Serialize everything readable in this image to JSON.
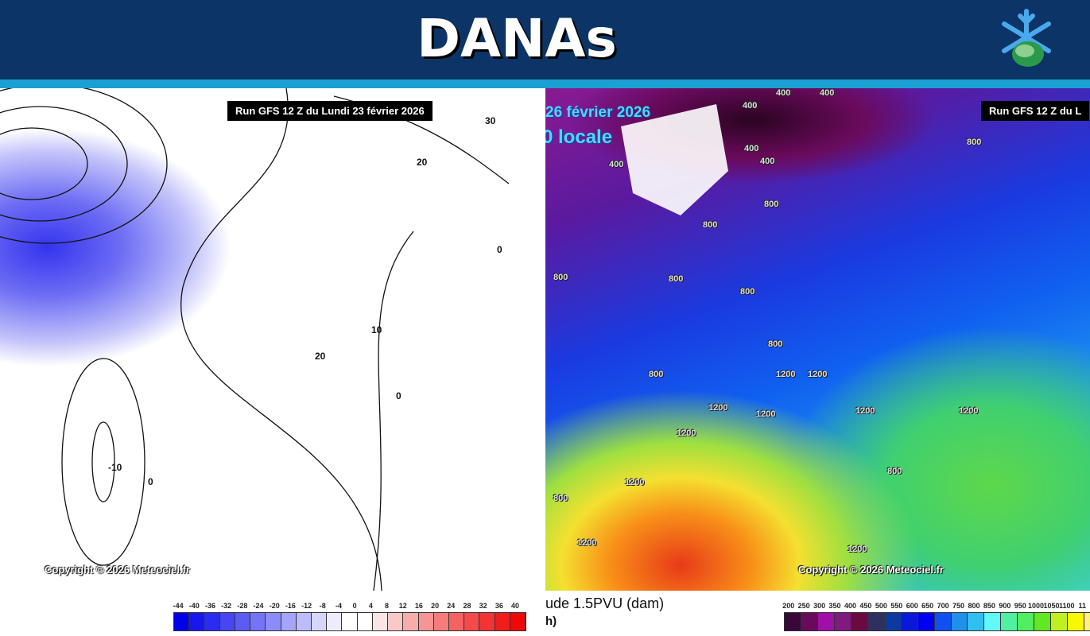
{
  "header": {
    "title": "DANAs",
    "logo": "snowflake-leaf-logo"
  },
  "left_map": {
    "run_label": "Run GFS 12 Z du Lundi 23 février 2026",
    "copyright": "Copyright © 2026 Meteociel.fr",
    "contour_labels": [
      "30",
      "20",
      "20",
      "10",
      "0",
      "0",
      "0",
      "-10"
    ],
    "legend_labels": [
      "-44",
      "-40",
      "-36",
      "-32",
      "-28",
      "-24",
      "-20",
      "-16",
      "-12",
      "-8",
      "-4",
      "0",
      "4",
      "8",
      "12",
      "16",
      "20",
      "24",
      "28",
      "32",
      "36",
      "40"
    ],
    "legend_colors": [
      "#0000e8",
      "#1818ec",
      "#2c2cf0",
      "#4646f2",
      "#5c5cf4",
      "#7474f6",
      "#8c8cf8",
      "#a4a4fa",
      "#bcbcfa",
      "#d6d6fc",
      "#ececfe",
      "#ffffff",
      "#ffffff",
      "#fbe4e4",
      "#fbc8c8",
      "#f9acac",
      "#f79494",
      "#f67c7c",
      "#f46262",
      "#f44a4a",
      "#f23434",
      "#f21c1c",
      "#f00808"
    ]
  },
  "right_map": {
    "run_label": "Run GFS 12 Z du L",
    "date_text": "26 février 2026",
    "time_text": "0 locale",
    "copyright": "Copyright © 2026 Meteociel.fr",
    "caption_line1": "ude 1.5PVU (dam)",
    "caption_line2": "h)",
    "contour_labels": [
      "400",
      "400",
      "400",
      "400",
      "400",
      "400",
      "800",
      "800",
      "800",
      "800",
      "800",
      "800",
      "800",
      "800",
      "800",
      "800",
      "1200",
      "1200",
      "1200",
      "1200",
      "1200",
      "1200",
      "1200",
      "1200",
      "1200",
      "1200"
    ],
    "legend_labels": [
      "200",
      "250",
      "300",
      "350",
      "400",
      "450",
      "500",
      "550",
      "600",
      "650",
      "700",
      "750",
      "800",
      "850",
      "900",
      "950",
      "1000",
      "1050",
      "1100",
      "11"
    ],
    "legend_colors": [
      "#3a0838",
      "#6a0a5a",
      "#a010a8",
      "#801a80",
      "#6a0a40",
      "#303060",
      "#0c3aa0",
      "#0a18d8",
      "#0000f4",
      "#1050f0",
      "#2090e8",
      "#30c0f0",
      "#60f8f8",
      "#50f0a0",
      "#50ee60",
      "#60e820",
      "#c0f020",
      "#f8f800",
      "#fcf080"
    ]
  }
}
